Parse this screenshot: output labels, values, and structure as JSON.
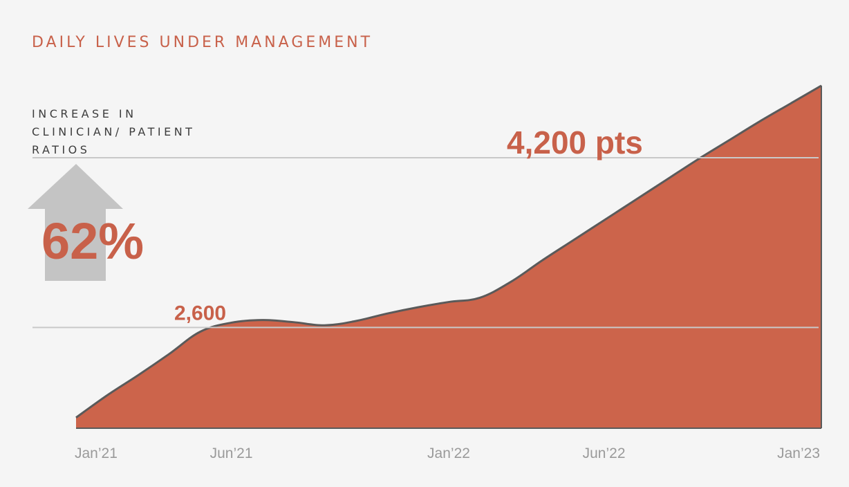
{
  "title": "DAILY LIVES UNDER MANAGEMENT",
  "callout": {
    "lines": [
      "INCREASE IN",
      "CLINICIAN/ PATIENT",
      "RATIOS"
    ],
    "percent": "62%",
    "start_label": "2,600",
    "end_label": "4,200 pts"
  },
  "colors": {
    "area_fill": "#cc644b",
    "area_stroke": "#5a5a5a",
    "accent_text": "#c8614a",
    "arrow": "#c4c4c4",
    "reference_line": "#c9c9c9",
    "axis_text": "#9a9a9a"
  },
  "chart_data": {
    "type": "area",
    "title": "DAILY LIVES UNDER MANAGEMENT",
    "xlabel": "",
    "ylabel": "",
    "x_tick_labels": [
      "Jan’21",
      "Jun’21",
      "Jan’22",
      "Jun’22",
      "Jan’23"
    ],
    "x_tick_dates": [
      "2021-01",
      "2021-06",
      "2022-01",
      "2022-06",
      "2023-01"
    ],
    "grid": false,
    "reference_lines": [
      2600,
      4200
    ],
    "ylim": [
      1650,
      4970
    ],
    "series": [
      {
        "x": [
          "2021-01",
          "2021-02",
          "2021-03",
          "2021-04",
          "2021-05",
          "2021-06",
          "2021-07",
          "2021-08",
          "2021-09",
          "2021-10",
          "2021-11",
          "2021-12",
          "2022-01",
          "2022-02",
          "2022-03",
          "2022-04",
          "2022-05",
          "2022-06",
          "2022-07",
          "2022-08",
          "2022-09",
          "2022-10",
          "2022-11",
          "2022-12",
          "2023-01"
        ],
        "values": [
          1750,
          1960,
          2150,
          2350,
          2560,
          2645,
          2670,
          2650,
          2620,
          2660,
          2730,
          2790,
          2840,
          2880,
          3030,
          3230,
          3420,
          3610,
          3800,
          3990,
          4180,
          4360,
          4540,
          4710,
          4880
        ]
      }
    ]
  }
}
